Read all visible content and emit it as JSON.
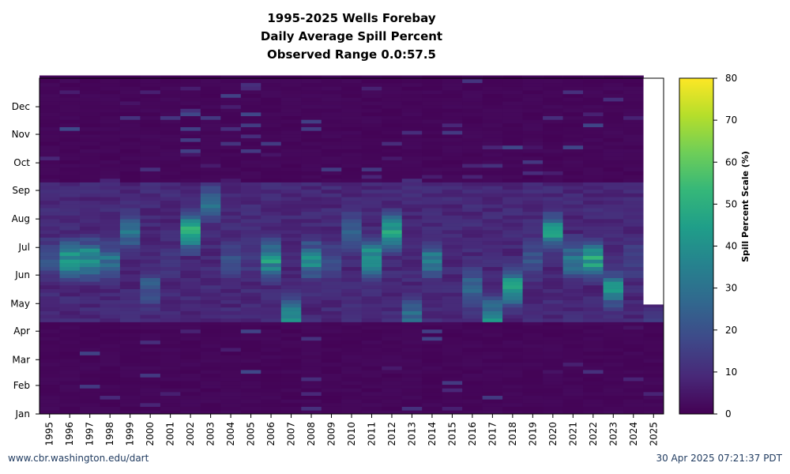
{
  "header": {
    "title_line1": "1995-2025 Wells Forebay",
    "title_line2": "Daily Average Spill Percent",
    "title_line3": "Observed Range 0.0:57.5"
  },
  "footer": {
    "site": "www.cbr.washington.edu/dart",
    "timestamp": "30 Apr 2025 07:21:37 PDT"
  },
  "colors": {
    "background_low": "#440154",
    "viridis": [
      "#440154",
      "#482878",
      "#3e4989",
      "#31688e",
      "#26828e",
      "#1f9e89",
      "#35b779",
      "#6ece58",
      "#b5de2b",
      "#fde725"
    ],
    "missing": "#ffffff"
  },
  "chart_data": {
    "type": "heatmap",
    "title": "1995-2025 Wells Forebay Daily Average Spill Percent Observed Range 0.0:57.5",
    "x_tick_labels": [
      "1995",
      "1996",
      "1997",
      "1998",
      "1999",
      "2000",
      "2001",
      "2002",
      "2003",
      "2004",
      "2005",
      "2006",
      "2007",
      "2008",
      "2009",
      "2010",
      "2011",
      "2012",
      "2013",
      "2014",
      "2015",
      "2016",
      "2017",
      "2018",
      "2019",
      "2020",
      "2021",
      "2022",
      "2023",
      "2024",
      "2025"
    ],
    "y_tick_labels": [
      "Jan",
      "Feb",
      "Mar",
      "Apr",
      "May",
      "Jun",
      "Jul",
      "Aug",
      "Sep",
      "Oct",
      "Nov",
      "Dec"
    ],
    "y_day_range": [
      1,
      366
    ],
    "colorbar": {
      "label": "Spill Percent Scale (%)",
      "range": [
        0,
        80
      ],
      "ticks": [
        0,
        10,
        20,
        30,
        40,
        50,
        60,
        70,
        80
      ]
    },
    "observed_range": [
      0.0,
      57.5
    ],
    "missing_data_2025_after_day": 120,
    "spill_season_approx_days": [
      100,
      250
    ],
    "peak_spill_by_year": [
      {
        "year": "1995",
        "peak_pct": 22,
        "peak_month": "Jun"
      },
      {
        "year": "1996",
        "peak_pct": 47,
        "peak_month": "Jun"
      },
      {
        "year": "1997",
        "peak_pct": 50,
        "peak_month": "Jun"
      },
      {
        "year": "1998",
        "peak_pct": 30,
        "peak_month": "Jun"
      },
      {
        "year": "1999",
        "peak_pct": 35,
        "peak_month": "Jul"
      },
      {
        "year": "2000",
        "peak_pct": 25,
        "peak_month": "May"
      },
      {
        "year": "2001",
        "peak_pct": 12,
        "peak_month": "Jun"
      },
      {
        "year": "2002",
        "peak_pct": 55,
        "peak_month": "Jul"
      },
      {
        "year": "2003",
        "peak_pct": 30,
        "peak_month": "Aug"
      },
      {
        "year": "2004",
        "peak_pct": 22,
        "peak_month": "Jun"
      },
      {
        "year": "2005",
        "peak_pct": 14,
        "peak_month": "Jun"
      },
      {
        "year": "2006",
        "peak_pct": 47,
        "peak_month": "Jun"
      },
      {
        "year": "2007",
        "peak_pct": 40,
        "peak_month": "Apr"
      },
      {
        "year": "2008",
        "peak_pct": 42,
        "peak_month": "Jun"
      },
      {
        "year": "2009",
        "peak_pct": 18,
        "peak_month": "Jun"
      },
      {
        "year": "2010",
        "peak_pct": 28,
        "peak_month": "Jul"
      },
      {
        "year": "2011",
        "peak_pct": 50,
        "peak_month": "Jun"
      },
      {
        "year": "2012",
        "peak_pct": 52,
        "peak_month": "Jul"
      },
      {
        "year": "2013",
        "peak_pct": 32,
        "peak_month": "Apr"
      },
      {
        "year": "2014",
        "peak_pct": 35,
        "peak_month": "Jun"
      },
      {
        "year": "2015",
        "peak_pct": 22,
        "peak_month": "Mar"
      },
      {
        "year": "2016",
        "peak_pct": 30,
        "peak_month": "May"
      },
      {
        "year": "2017",
        "peak_pct": 45,
        "peak_month": "Apr"
      },
      {
        "year": "2018",
        "peak_pct": 55,
        "peak_month": "May"
      },
      {
        "year": "2019",
        "peak_pct": 25,
        "peak_month": "Jun"
      },
      {
        "year": "2020",
        "peak_pct": 45,
        "peak_month": "Jul"
      },
      {
        "year": "2021",
        "peak_pct": 35,
        "peak_month": "Jun"
      },
      {
        "year": "2022",
        "peak_pct": 52,
        "peak_month": "Jun"
      },
      {
        "year": "2023",
        "peak_pct": 42,
        "peak_month": "May"
      },
      {
        "year": "2024",
        "peak_pct": 18,
        "peak_month": "Jun"
      },
      {
        "year": "2025",
        "peak_pct": 12,
        "peak_month": "Apr"
      }
    ]
  }
}
